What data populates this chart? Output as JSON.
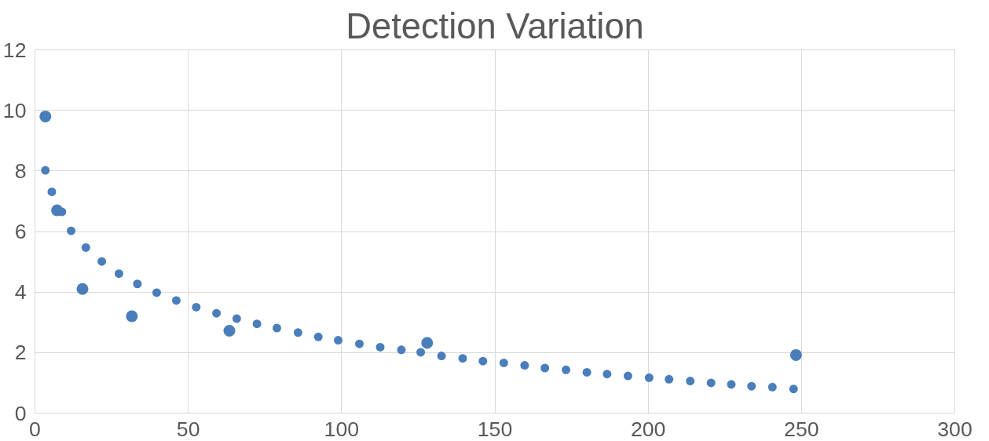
{
  "chart_data": {
    "type": "scatter",
    "title": "Detection Variation",
    "xlim": [
      0,
      300
    ],
    "xticks": [
      0,
      50,
      100,
      150,
      200,
      250,
      300
    ],
    "ylim": [
      0,
      12
    ],
    "yticks": [
      0,
      2,
      4,
      6,
      8,
      10,
      12
    ],
    "grid": true,
    "marker": "circle",
    "series": [
      {
        "color": "#4a7ebb",
        "x": [
          3.4,
          5.5,
          8.8,
          11.8,
          16.6,
          21.8,
          27.4,
          33.4,
          39.7,
          46.1,
          52.6,
          59.2,
          65.8,
          72.4,
          78.9,
          85.8,
          92.4,
          98.9,
          105.8,
          112.6,
          119.5,
          125.8,
          132.6,
          139.5,
          146.1,
          152.9,
          159.7,
          166.3,
          173.2,
          180,
          186.6,
          193.4,
          200.3,
          206.8,
          213.7,
          220.5,
          227.1,
          233.7,
          240.5,
          247.4
        ],
        "values": [
          8.02,
          7.31,
          6.65,
          6.02,
          5.47,
          5.01,
          4.61,
          4.27,
          3.98,
          3.72,
          3.5,
          3.3,
          3.12,
          2.95,
          2.81,
          2.66,
          2.52,
          2.41,
          2.29,
          2.18,
          2.09,
          2.01,
          1.89,
          1.81,
          1.72,
          1.66,
          1.58,
          1.49,
          1.43,
          1.35,
          1.29,
          1.23,
          1.17,
          1.12,
          1.06,
          1.0,
          0.95,
          0.89,
          0.86,
          0.8
        ]
      },
      {
        "color": "#4a7ebb",
        "x": [
          3.4,
          7.2,
          15.5,
          31.6,
          63.4,
          127.9,
          248.2
        ],
        "values": [
          9.8,
          6.7,
          4.1,
          3.2,
          2.72,
          2.32,
          1.92
        ]
      }
    ]
  }
}
